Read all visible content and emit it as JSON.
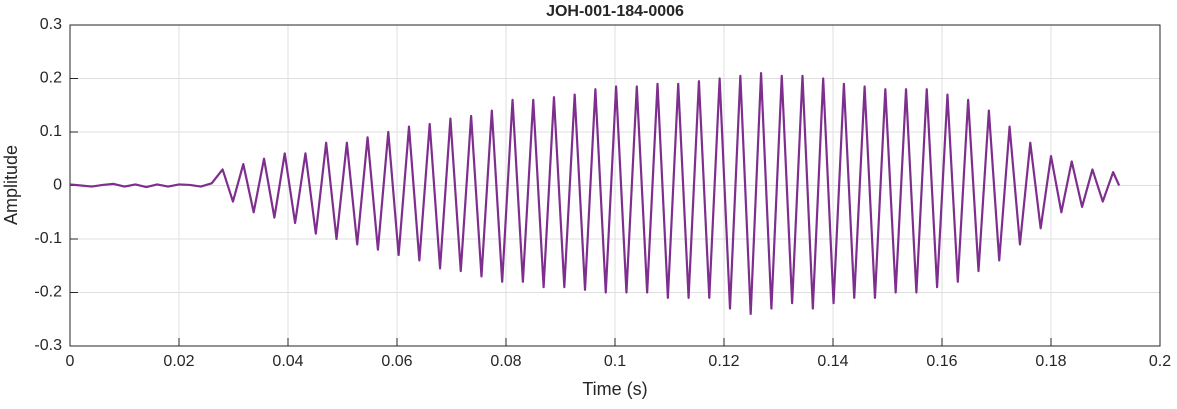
{
  "chart_data": {
    "type": "line",
    "title": "JOH-001-184-0006",
    "xlabel": "Time (s)",
    "ylabel": "Amplitude",
    "xlim": [
      0,
      0.2
    ],
    "ylim": [
      -0.3,
      0.3
    ],
    "xticks": [
      0,
      0.02,
      0.04,
      0.06,
      0.08,
      0.1,
      0.12,
      0.14,
      0.16,
      0.18,
      0.2
    ],
    "yticks": [
      -0.3,
      -0.2,
      -0.1,
      0,
      0.1,
      0.2,
      0.3
    ],
    "grid": true,
    "x": [
      0,
      0.002,
      0.004,
      0.006,
      0.008,
      0.01,
      0.012,
      0.014,
      0.016,
      0.018,
      0.02,
      0.022,
      0.024,
      0.026,
      0.028,
      0.0299,
      0.0318,
      0.0337,
      0.0356,
      0.0375,
      0.0394,
      0.0413,
      0.0432,
      0.0451,
      0.047,
      0.0489,
      0.0508,
      0.0527,
      0.0546,
      0.0565,
      0.0584,
      0.0603,
      0.0622,
      0.0641,
      0.066,
      0.0679,
      0.0698,
      0.0717,
      0.0736,
      0.0755,
      0.0774,
      0.0793,
      0.0812,
      0.0831,
      0.085,
      0.0869,
      0.0888,
      0.0907,
      0.0926,
      0.0945,
      0.0964,
      0.0983,
      0.1002,
      0.1021,
      0.104,
      0.1059,
      0.1078,
      0.1097,
      0.1116,
      0.1135,
      0.1154,
      0.1173,
      0.1192,
      0.1211,
      0.123,
      0.1249,
      0.1268,
      0.1287,
      0.1306,
      0.1325,
      0.1344,
      0.1363,
      0.1382,
      0.1401,
      0.142,
      0.1439,
      0.1458,
      0.1477,
      0.1496,
      0.1515,
      0.1534,
      0.1553,
      0.1572,
      0.1591,
      0.161,
      0.1629,
      0.1648,
      0.1667,
      0.1686,
      0.1705,
      0.1724,
      0.1743,
      0.1762,
      0.1781,
      0.18,
      0.1819,
      0.1838,
      0.1857,
      0.1876,
      0.1895,
      0.1914,
      0.1925
    ],
    "series": [
      {
        "name": "Amplitude",
        "color": "#7e2f8e",
        "values": [
          0.002,
          0,
          -0.002,
          0.001,
          0.003,
          -0.002,
          0.002,
          -0.003,
          0.002,
          -0.002,
          0.002,
          0.001,
          -0.002,
          0.004,
          0.03,
          -0.03,
          0.04,
          -0.05,
          0.05,
          -0.06,
          0.06,
          -0.07,
          0.06,
          -0.09,
          0.08,
          -0.1,
          0.08,
          -0.11,
          0.09,
          -0.12,
          0.1,
          -0.13,
          0.11,
          -0.14,
          0.115,
          -0.155,
          0.125,
          -0.16,
          0.13,
          -0.17,
          0.14,
          -0.18,
          0.16,
          -0.18,
          0.16,
          -0.19,
          0.165,
          -0.19,
          0.17,
          -0.195,
          0.18,
          -0.2,
          0.185,
          -0.2,
          0.185,
          -0.2,
          0.19,
          -0.21,
          0.19,
          -0.21,
          0.195,
          -0.21,
          0.2,
          -0.23,
          0.205,
          -0.24,
          0.21,
          -0.23,
          0.205,
          -0.22,
          0.205,
          -0.23,
          0.2,
          -0.22,
          0.19,
          -0.21,
          0.185,
          -0.21,
          0.18,
          -0.2,
          0.18,
          -0.2,
          0.18,
          -0.19,
          0.17,
          -0.18,
          0.16,
          -0.16,
          0.14,
          -0.14,
          0.11,
          -0.11,
          0.08,
          -0.08,
          0.055,
          -0.05,
          0.045,
          -0.04,
          0.03,
          -0.03,
          0.025,
          0
        ]
      }
    ]
  }
}
